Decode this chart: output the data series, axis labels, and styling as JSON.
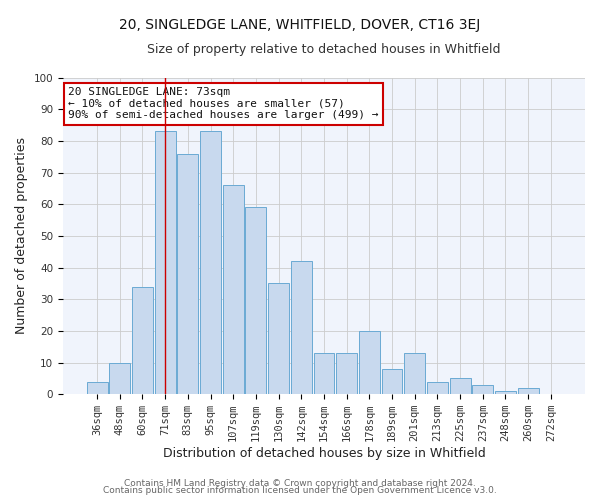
{
  "title": "20, SINGLEDGE LANE, WHITFIELD, DOVER, CT16 3EJ",
  "subtitle": "Size of property relative to detached houses in Whitfield",
  "xlabel": "Distribution of detached houses by size in Whitfield",
  "ylabel": "Number of detached properties",
  "categories": [
    "36sqm",
    "48sqm",
    "60sqm",
    "71sqm",
    "83sqm",
    "95sqm",
    "107sqm",
    "119sqm",
    "130sqm",
    "142sqm",
    "154sqm",
    "166sqm",
    "178sqm",
    "189sqm",
    "201sqm",
    "213sqm",
    "225sqm",
    "237sqm",
    "248sqm",
    "260sqm",
    "272sqm"
  ],
  "values": [
    4,
    10,
    34,
    83,
    76,
    83,
    66,
    59,
    35,
    42,
    13,
    13,
    20,
    8,
    13,
    4,
    5,
    3,
    1,
    2,
    0
  ],
  "bar_color": "#c8d9ee",
  "bar_edge_color": "#6aaad4",
  "vline_x_index": 3,
  "vline_color": "#cc0000",
  "ylim": [
    0,
    100
  ],
  "yticks": [
    0,
    10,
    20,
    30,
    40,
    50,
    60,
    70,
    80,
    90,
    100
  ],
  "annotation_title": "20 SINGLEDGE LANE: 73sqm",
  "annotation_line1": "← 10% of detached houses are smaller (57)",
  "annotation_line2": "90% of semi-detached houses are larger (499) →",
  "annotation_box_facecolor": "#ffffff",
  "annotation_box_edgecolor": "#cc0000",
  "footer_line1": "Contains HM Land Registry data © Crown copyright and database right 2024.",
  "footer_line2": "Contains public sector information licensed under the Open Government Licence v3.0.",
  "bg_color": "#ffffff",
  "plot_bg_color": "#f0f4fc",
  "title_fontsize": 10,
  "subtitle_fontsize": 9,
  "axis_label_fontsize": 9,
  "tick_fontsize": 7.5,
  "annotation_fontsize": 8,
  "footer_fontsize": 6.5
}
